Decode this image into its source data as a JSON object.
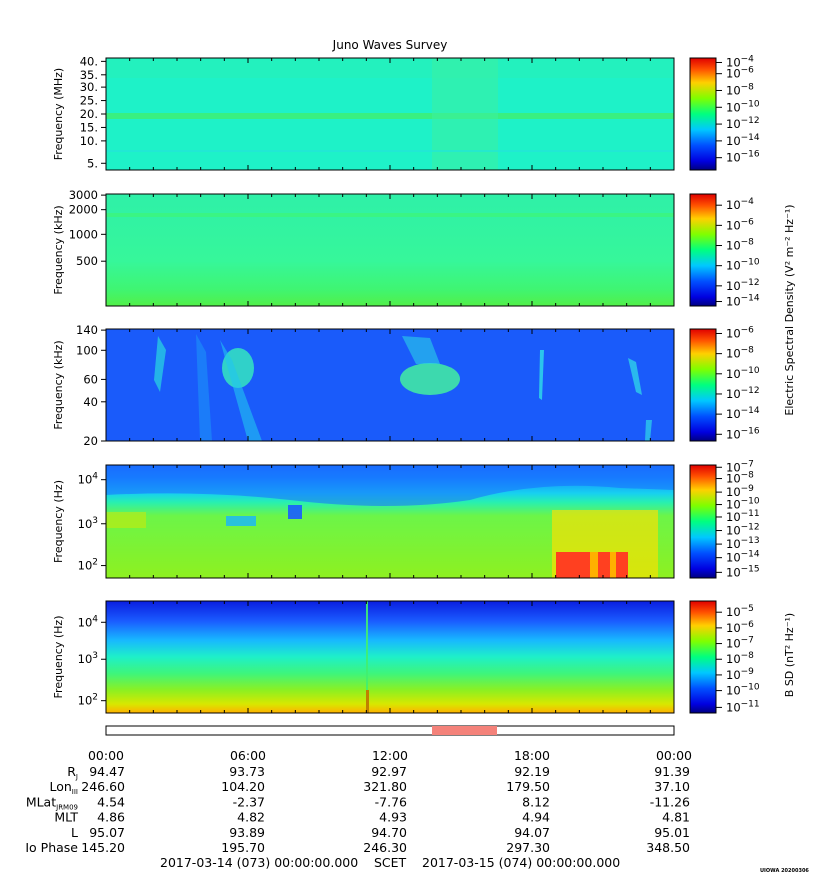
{
  "title": "Juno Waves Survey",
  "watermark": "UIOWA 20200306",
  "scet_label": "SCET",
  "date_start": "2017-03-14 (073) 00:00:00.000",
  "date_end": "2017-03-15 (074) 00:00:00.000",
  "colorbar_label_e": "Electric Spectral Density (V² m⁻² Hz⁻¹)",
  "colorbar_label_b": "B SD (nT² Hz⁻¹)",
  "colors": {
    "event_bar": "#f4827a",
    "spectral_low": "#0000c8",
    "spectral_high": "#e60000"
  },
  "time_ticks": [
    "00:00",
    "06:00",
    "12:00",
    "18:00",
    "00:00"
  ],
  "ephemeris": {
    "rows": [
      {
        "label": "R",
        "sub": "J",
        "values": [
          "94.47",
          "93.73",
          "92.97",
          "92.19",
          "91.39"
        ]
      },
      {
        "label": "Lon",
        "sub": "III",
        "values": [
          "246.60",
          "104.20",
          "321.80",
          "179.50",
          "37.10"
        ]
      },
      {
        "label": "MLat",
        "sub": "JRM09",
        "values": [
          "4.54",
          "-2.37",
          "-7.76",
          "8.12",
          "-11.26"
        ]
      },
      {
        "label": "MLT",
        "sub": "",
        "values": [
          "4.86",
          "4.82",
          "4.93",
          "4.94",
          "4.81"
        ]
      },
      {
        "label": "L",
        "sub": "",
        "values": [
          "95.07",
          "93.89",
          "94.70",
          "94.07",
          "95.01"
        ]
      },
      {
        "label": "Io Phase",
        "sub": "",
        "values": [
          "145.20",
          "195.70",
          "246.30",
          "297.30",
          "348.50"
        ]
      }
    ]
  },
  "chart_data": [
    {
      "type": "heatmap",
      "ylabel": "Frequency (MHz)",
      "yticks": [
        "40.",
        "35.",
        "30.",
        "25.",
        "20.",
        "15.",
        "10.",
        "5."
      ],
      "colorbar_ticks": [
        "-4",
        "-6",
        "-8",
        "-10",
        "-12",
        "-14",
        "-16"
      ],
      "colorbar_range": [
        -16,
        -4
      ]
    },
    {
      "type": "heatmap",
      "ylabel": "Frequency (kHz)",
      "yticks": [
        "3000",
        "2000",
        "1000",
        "500"
      ],
      "colorbar_ticks": [
        "-4",
        "-6",
        "-8",
        "-10",
        "-12",
        "-14"
      ],
      "colorbar_range": [
        -14,
        -4
      ]
    },
    {
      "type": "heatmap",
      "ylabel": "Frequency (kHz)",
      "yticks": [
        "140",
        "100",
        "60",
        "40",
        "20"
      ],
      "colorbar_ticks": [
        "-6",
        "-8",
        "-10",
        "-12",
        "-14",
        "-16"
      ],
      "colorbar_range": [
        -16,
        -6
      ]
    },
    {
      "type": "heatmap",
      "ylabel": "Frequency (Hz)",
      "yticks": [
        "10^4",
        "10^3",
        "10^2"
      ],
      "colorbar_ticks": [
        "-7",
        "-8",
        "-9",
        "-10",
        "-11",
        "-12",
        "-13",
        "-14",
        "-15"
      ],
      "colorbar_range": [
        -15,
        -7
      ]
    },
    {
      "type": "heatmap",
      "ylabel": "Frequency (Hz)",
      "yticks": [
        "10^4",
        "10^3",
        "10^2"
      ],
      "colorbar_ticks": [
        "-5",
        "-6",
        "-7",
        "-8",
        "-9",
        "-10",
        "-11"
      ],
      "colorbar_range": [
        -11,
        -5
      ]
    }
  ]
}
